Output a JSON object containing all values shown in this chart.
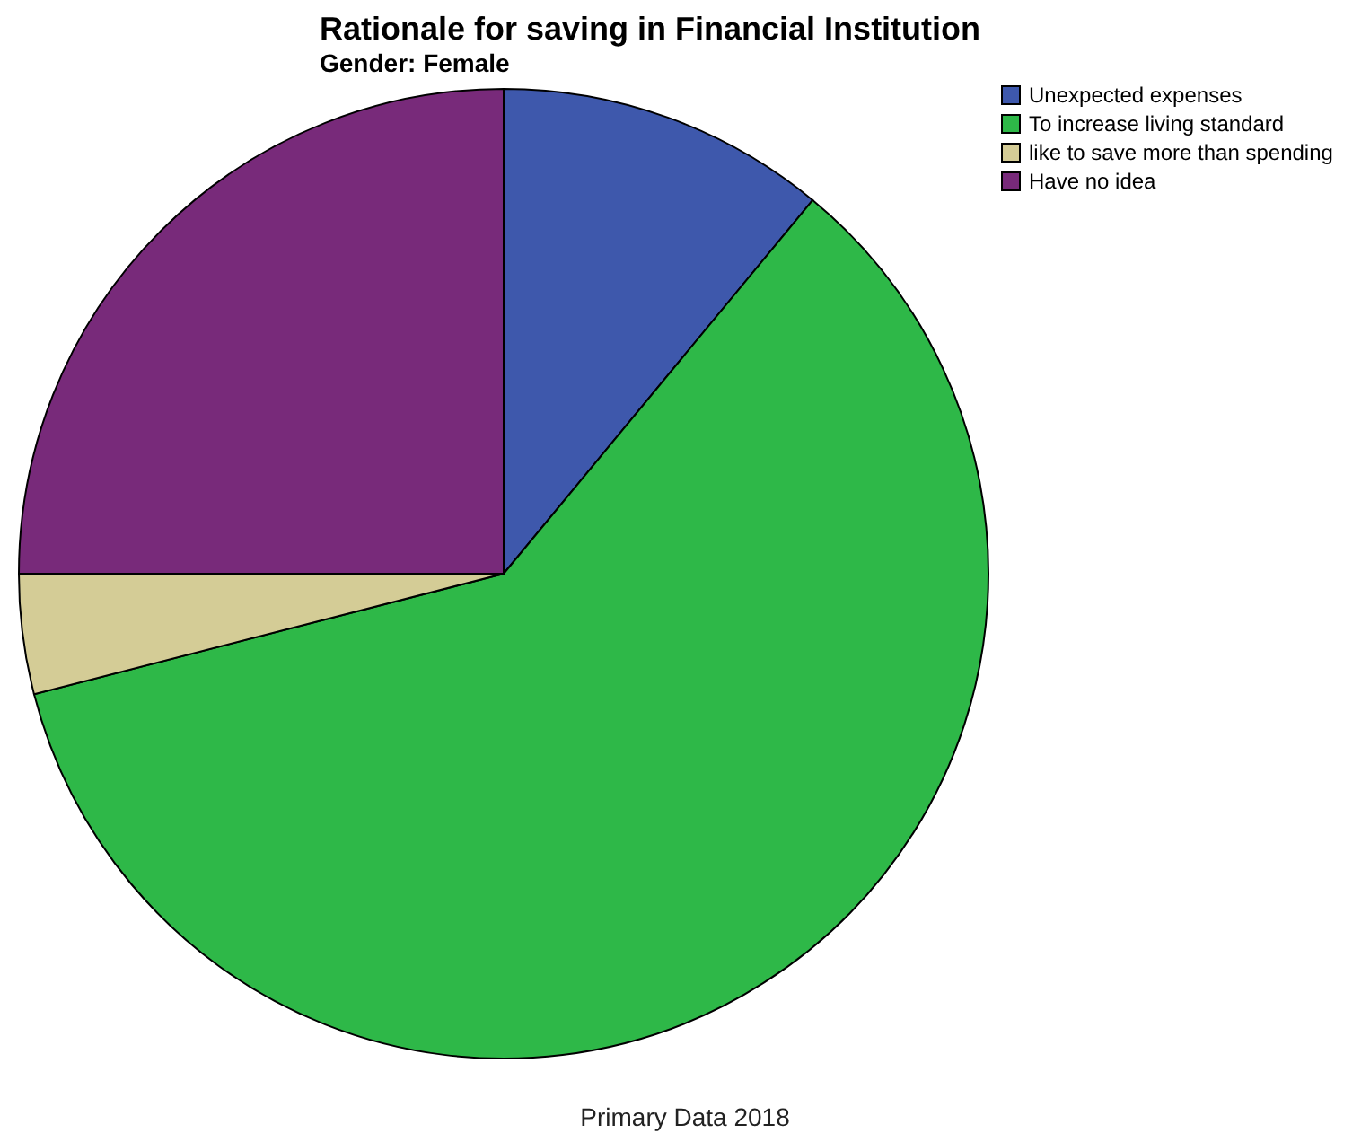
{
  "chart_data": {
    "type": "pie",
    "title": "Rationale for saving in Financial Institution",
    "subtitle": "Gender: Female",
    "categories": [
      "Unexpected expenses",
      "To increase living standard",
      "like to save more than spending",
      "Have no idea"
    ],
    "values": [
      11,
      60,
      4,
      25
    ],
    "colors": [
      "#3e58ac",
      "#2eb848",
      "#d4cc96",
      "#782a7a"
    ],
    "legend": "top right",
    "annotations": [
      "Primary Data 2018"
    ]
  }
}
